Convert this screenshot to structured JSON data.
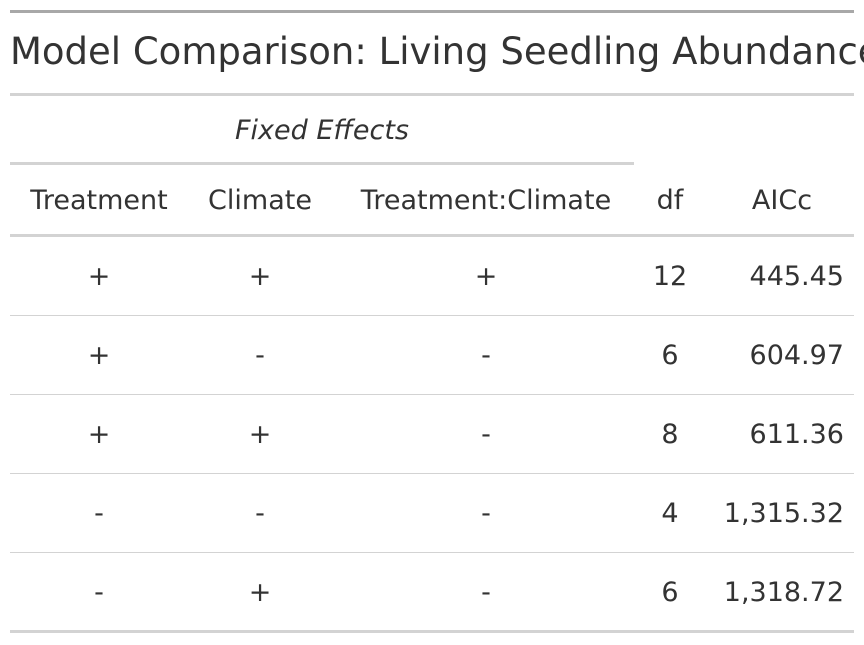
{
  "title": "Model Comparison: Living Seedling Abundance",
  "spanner_label": "Fixed Effects",
  "columns": {
    "treatment": "Treatment",
    "climate": "Climate",
    "interaction": "Treatment:Climate",
    "df": "df",
    "aicc": "AICc"
  },
  "rows": [
    {
      "treatment": "+",
      "climate": "+",
      "interaction": "+",
      "df": "12",
      "aicc": "445.45"
    },
    {
      "treatment": "+",
      "climate": "-",
      "interaction": "-",
      "df": "6",
      "aicc": "604.97"
    },
    {
      "treatment": "+",
      "climate": "+",
      "interaction": "-",
      "df": "8",
      "aicc": "611.36"
    },
    {
      "treatment": "-",
      "climate": "-",
      "interaction": "-",
      "df": "4",
      "aicc": "1,315.32"
    },
    {
      "treatment": "-",
      "climate": "+",
      "interaction": "-",
      "df": "6",
      "aicc": "1,318.72"
    }
  ],
  "colors": {
    "text": "#333333",
    "top_rule": "#a8a8a8",
    "rule": "#d3d3d3"
  }
}
